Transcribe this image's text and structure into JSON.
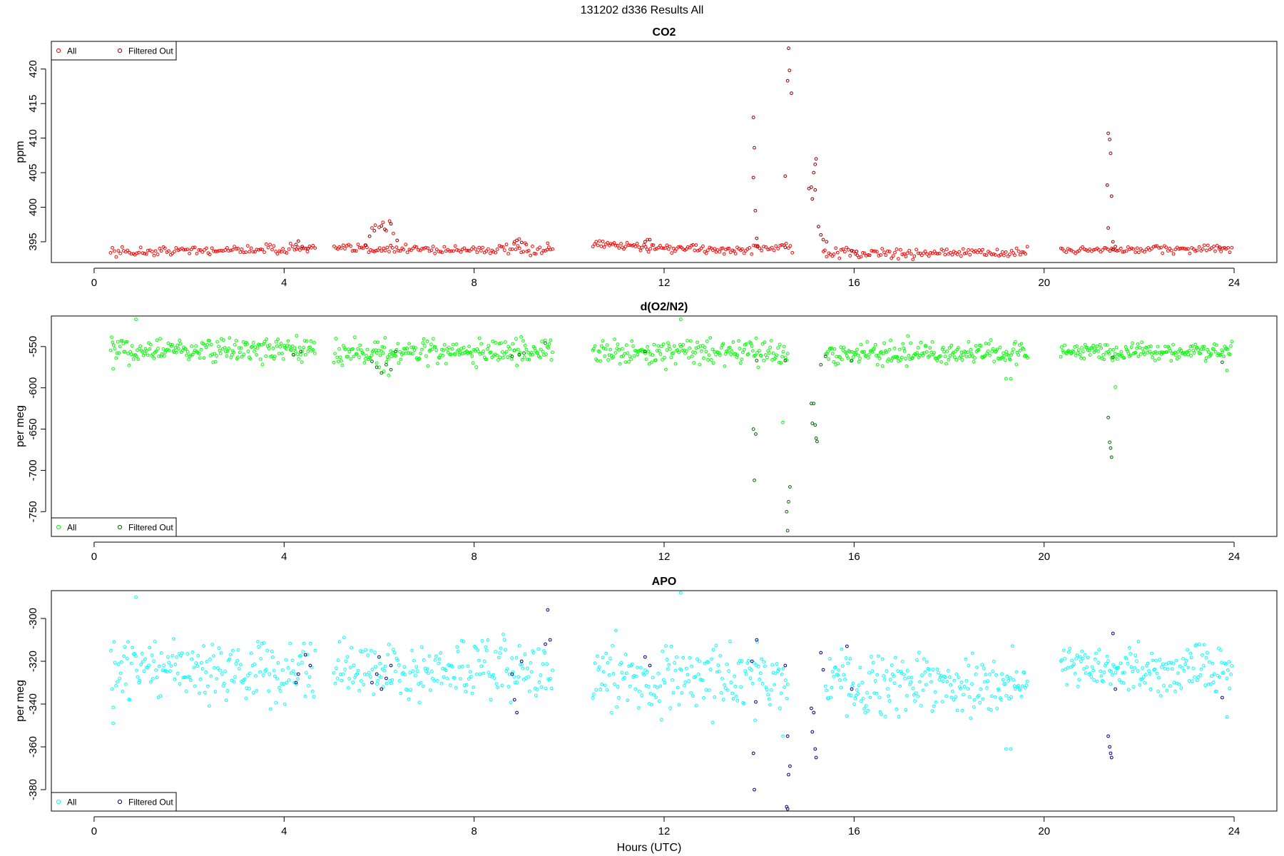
{
  "page_title": "131202   d336   Results All",
  "xlabel": "Hours (UTC)",
  "colors": {
    "co2_all": "#ff0000",
    "co2_filtered": "#8b0000",
    "o2_all": "#00ff00",
    "o2_filtered": "#006400",
    "apo_all": "#00ffff",
    "apo_filtered": "#00008b"
  },
  "chart_data": [
    {
      "type": "scatter",
      "title": "CO2",
      "ylabel": "ppm",
      "xlim": [
        -0.9,
        24.9
      ],
      "ylim": [
        392,
        424
      ],
      "xticks": [
        0,
        4,
        8,
        12,
        16,
        20,
        24
      ],
      "yticks": [
        395,
        400,
        405,
        410,
        415,
        420
      ],
      "legend": {
        "position": "top-left",
        "entries": [
          "All",
          "Filtered Out"
        ]
      },
      "series": [
        {
          "name": "All",
          "segments": [
            {
              "x0": 0.35,
              "x1": 4.65,
              "base": 393.5,
              "slope": 0.14,
              "noise": 0.35,
              "n": 110
            },
            {
              "x0": 5.05,
              "x1": 9.65,
              "base": 394.0,
              "slope": -0.04,
              "noise": 0.35,
              "n": 120
            },
            {
              "x0": 10.5,
              "x1": 13.75,
              "base": 394.6,
              "slope": -0.28,
              "noise": 0.35,
              "n": 95
            },
            {
              "x0": 13.8,
              "x1": 14.7,
              "base": 394.1,
              "slope": 0.0,
              "noise": 0.35,
              "n": 22
            },
            {
              "x0": 15.35,
              "x1": 19.65,
              "base": 393.3,
              "slope": 0.03,
              "noise": 0.35,
              "n": 115
            },
            {
              "x0": 20.35,
              "x1": 23.95,
              "base": 393.8,
              "slope": 0.05,
              "noise": 0.3,
              "n": 95
            }
          ],
          "points": [
            [
              5.85,
              397.0
            ],
            [
              5.92,
              397.4
            ],
            [
              6.0,
              397.1
            ],
            [
              6.08,
              397.8
            ],
            [
              6.15,
              396.6
            ],
            [
              6.22,
              398.0
            ],
            [
              6.3,
              396.2
            ],
            [
              8.85,
              395.0
            ],
            [
              8.95,
              395.4
            ],
            [
              9.1,
              394.6
            ],
            [
              9.55,
              394.8
            ],
            [
              11.65,
              395.3
            ]
          ]
        },
        {
          "name": "Filtered Out",
          "points": [
            [
              13.88,
              413.0
            ],
            [
              13.9,
              408.6
            ],
            [
              13.88,
              404.3
            ],
            [
              13.92,
              399.5
            ],
            [
              13.95,
              395.5
            ],
            [
              13.97,
              394.4
            ],
            [
              14.55,
              404.5
            ],
            [
              14.62,
              423.0
            ],
            [
              14.64,
              419.8
            ],
            [
              14.6,
              418.3
            ],
            [
              14.68,
              416.5
            ],
            [
              14.55,
              394.2
            ],
            [
              15.05,
              402.7
            ],
            [
              15.1,
              402.9
            ],
            [
              15.18,
              402.5
            ],
            [
              15.12,
              401.2
            ],
            [
              15.2,
              407.0
            ],
            [
              15.18,
              406.2
            ],
            [
              15.15,
              405.0
            ],
            [
              15.25,
              397.2
            ],
            [
              15.3,
              396.0
            ],
            [
              15.35,
              395.3
            ],
            [
              15.42,
              395.0
            ],
            [
              21.35,
              410.7
            ],
            [
              21.38,
              409.8
            ],
            [
              21.4,
              407.8
            ],
            [
              21.33,
              403.2
            ],
            [
              21.42,
              401.6
            ],
            [
              21.35,
              397.0
            ],
            [
              21.45,
              395.0
            ],
            [
              21.5,
              394.3
            ],
            [
              4.25,
              394.6
            ],
            [
              4.3,
              395.1
            ],
            [
              4.38,
              394.3
            ],
            [
              4.5,
              394.0
            ],
            [
              5.72,
              394.5
            ],
            [
              5.8,
              395.8
            ],
            [
              5.9,
              396.6
            ],
            [
              6.05,
              397.3
            ],
            [
              6.12,
              396.8
            ],
            [
              6.25,
              397.6
            ],
            [
              6.38,
              395.2
            ],
            [
              8.9,
              395.2
            ],
            [
              9.0,
              394.9
            ],
            [
              11.6,
              395.0
            ],
            [
              11.7,
              395.3
            ],
            [
              15.95,
              393.7
            ],
            [
              16.05,
              393.6
            ],
            [
              21.45,
              393.9
            ],
            [
              23.7,
              394.2
            ]
          ]
        }
      ]
    },
    {
      "type": "scatter",
      "title": "d(O2/N2)",
      "ylabel": "per meg",
      "xlim": [
        -0.9,
        24.9
      ],
      "ylim": [
        -780,
        -513
      ],
      "xticks": [
        0,
        4,
        8,
        12,
        16,
        20,
        24
      ],
      "yticks": [
        -550,
        -600,
        -650,
        -700,
        -750
      ],
      "legend": {
        "position": "bottom-left",
        "entries": [
          "All",
          "Filtered Out"
        ]
      },
      "series": [
        {
          "name": "All",
          "segments": [
            {
              "x0": 0.35,
              "x1": 4.65,
              "base": -555,
              "slope": 0.0,
              "noise": 7,
              "n": 200
            },
            {
              "x0": 5.05,
              "x1": 9.65,
              "base": -556,
              "slope": 0.0,
              "noise": 7,
              "n": 210
            },
            {
              "x0": 10.5,
              "x1": 14.6,
              "base": -557,
              "slope": 0.0,
              "noise": 7,
              "n": 180
            },
            {
              "x0": 15.4,
              "x1": 19.65,
              "base": -558,
              "slope": 0.0,
              "noise": 7,
              "n": 200
            },
            {
              "x0": 20.35,
              "x1": 23.95,
              "base": -556,
              "slope": 0.0,
              "noise": 5,
              "n": 170
            }
          ],
          "points": [
            [
              0.88,
              -517
            ],
            [
              12.35,
              -517
            ],
            [
              0.4,
              -577
            ],
            [
              19.2,
              -589
            ],
            [
              19.3,
              -589
            ],
            [
              23.85,
              -579
            ],
            [
              21.5,
              -599
            ],
            [
              14.5,
              -642
            ],
            [
              6.0,
              -575
            ],
            [
              6.1,
              -580
            ],
            [
              5.95,
              -570
            ],
            [
              6.2,
              -585
            ]
          ]
        },
        {
          "name": "Filtered Out",
          "points": [
            [
              13.88,
              -650
            ],
            [
              13.93,
              -656
            ],
            [
              13.9,
              -712
            ],
            [
              14.65,
              -720
            ],
            [
              14.62,
              -738
            ],
            [
              14.58,
              -750
            ],
            [
              14.6,
              -773
            ],
            [
              15.1,
              -619
            ],
            [
              15.15,
              -619
            ],
            [
              15.12,
              -643
            ],
            [
              15.18,
              -645
            ],
            [
              15.2,
              -661
            ],
            [
              15.22,
              -665
            ],
            [
              21.35,
              -636
            ],
            [
              21.38,
              -666
            ],
            [
              21.4,
              -673
            ],
            [
              21.42,
              -684
            ],
            [
              4.2,
              -560
            ],
            [
              4.35,
              -556
            ],
            [
              5.85,
              -568
            ],
            [
              5.95,
              -575
            ],
            [
              6.05,
              -582
            ],
            [
              6.15,
              -572
            ],
            [
              6.25,
              -578
            ],
            [
              6.35,
              -556
            ],
            [
              8.8,
              -562
            ],
            [
              8.95,
              -560
            ],
            [
              9.05,
              -558
            ],
            [
              9.5,
              -546
            ],
            [
              11.6,
              -556
            ],
            [
              13.95,
              -567
            ],
            [
              14.55,
              -567
            ],
            [
              15.3,
              -572
            ],
            [
              15.4,
              -562
            ],
            [
              15.95,
              -567
            ],
            [
              21.45,
              -563
            ],
            [
              23.75,
              -569
            ]
          ]
        }
      ]
    },
    {
      "type": "scatter",
      "title": "APO",
      "ylabel": "per meg",
      "xlim": [
        -0.9,
        24.9
      ],
      "ylim": [
        -390,
        -287
      ],
      "xticks": [
        0,
        4,
        8,
        12,
        16,
        20,
        24
      ],
      "yticks": [
        -300,
        -320,
        -340,
        -360,
        -380
      ],
      "legend": {
        "position": "bottom-left",
        "entries": [
          "All",
          "Filtered Out"
        ]
      },
      "series": [
        {
          "name": "All",
          "segments": [
            {
              "x0": 0.35,
              "x1": 4.65,
              "base": -324,
              "slope": 0.0,
              "noise": 7,
              "n": 190
            },
            {
              "x0": 5.05,
              "x1": 9.65,
              "base": -325,
              "slope": 0.0,
              "noise": 7,
              "n": 200
            },
            {
              "x0": 10.5,
              "x1": 14.6,
              "base": -327,
              "slope": 0.0,
              "noise": 7.5,
              "n": 180
            },
            {
              "x0": 15.4,
              "x1": 19.65,
              "base": -330,
              "slope": 0.0,
              "noise": 7,
              "n": 200
            },
            {
              "x0": 20.35,
              "x1": 23.95,
              "base": -324,
              "slope": 0.0,
              "noise": 5.5,
              "n": 170
            }
          ],
          "points": [
            [
              0.88,
              -290
            ],
            [
              12.35,
              -288
            ],
            [
              0.4,
              -349
            ],
            [
              19.2,
              -361
            ],
            [
              19.3,
              -361
            ],
            [
              23.85,
              -346
            ],
            [
              14.5,
              -355
            ]
          ]
        },
        {
          "name": "Filtered Out",
          "points": [
            [
              13.88,
              -363
            ],
            [
              13.9,
              -380
            ],
            [
              13.93,
              -339
            ],
            [
              13.95,
              -310
            ],
            [
              14.6,
              -355
            ],
            [
              14.65,
              -369
            ],
            [
              14.62,
              -373
            ],
            [
              14.58,
              -388
            ],
            [
              14.6,
              -389
            ],
            [
              15.1,
              -342
            ],
            [
              15.15,
              -344
            ],
            [
              15.12,
              -353
            ],
            [
              15.18,
              -361
            ],
            [
              15.2,
              -365
            ],
            [
              15.3,
              -316
            ],
            [
              15.35,
              -324
            ],
            [
              15.85,
              -313
            ],
            [
              15.95,
              -333
            ],
            [
              21.35,
              -355
            ],
            [
              21.38,
              -360
            ],
            [
              21.4,
              -363
            ],
            [
              21.42,
              -365
            ],
            [
              21.45,
              -307
            ],
            [
              21.5,
              -333
            ],
            [
              9.55,
              -296
            ],
            [
              9.5,
              -312
            ],
            [
              9.6,
              -310
            ],
            [
              8.85,
              -338
            ],
            [
              8.9,
              -344
            ],
            [
              8.8,
              -326
            ],
            [
              9.0,
              -320
            ],
            [
              5.85,
              -330
            ],
            [
              5.95,
              -326
            ],
            [
              6.05,
              -333
            ],
            [
              6.15,
              -328
            ],
            [
              6.25,
              -322
            ],
            [
              6.0,
              -318
            ],
            [
              4.25,
              -330
            ],
            [
              4.3,
              -326
            ],
            [
              4.45,
              -317
            ],
            [
              4.55,
              -322
            ],
            [
              11.6,
              -318
            ],
            [
              11.7,
              -322
            ],
            [
              13.85,
              -320
            ],
            [
              14.55,
              -322
            ],
            [
              23.75,
              -337
            ]
          ]
        }
      ]
    }
  ]
}
